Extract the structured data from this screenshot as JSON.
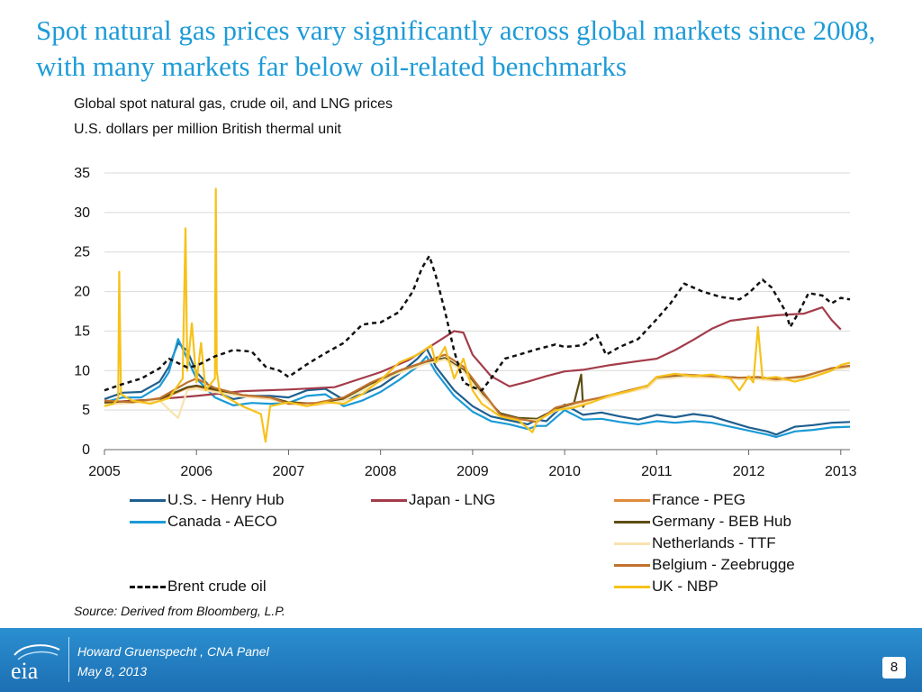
{
  "slide": {
    "title": "Spot natural gas prices vary significantly across global markets since 2008, with many markets far below oil-related benchmarks",
    "subtitle1": "Global spot natural gas, crude oil, and LNG prices",
    "subtitle2": "U.S. dollars per million British thermal unit",
    "source": "Source:  Derived from Bloomberg, L.P.",
    "footer_line1": "Howard Gruenspecht ,  CNA Panel",
    "footer_line2": "May 8, 2013",
    "logo_text": "eia",
    "page_number": "8"
  },
  "chart_data": {
    "type": "line",
    "title": "",
    "xlabel": "",
    "ylabel": "",
    "xlim": [
      2005,
      2013.1
    ],
    "ylim": [
      0,
      35
    ],
    "x_ticks": [
      "2005",
      "2006",
      "2007",
      "2008",
      "2009",
      "2010",
      "2011",
      "2012",
      "2013"
    ],
    "y_ticks": [
      "0",
      "5",
      "10",
      "15",
      "20",
      "25",
      "30",
      "35"
    ],
    "grid": "horizontal",
    "legend_position": "bottom",
    "series": [
      {
        "name": "U.S. - Henry Hub",
        "color": "#1f5f8f",
        "dash": "solid",
        "x": [
          2005.0,
          2005.2,
          2005.4,
          2005.6,
          2005.7,
          2005.8,
          2005.9,
          2006.0,
          2006.2,
          2006.4,
          2006.6,
          2006.8,
          2007.0,
          2007.2,
          2007.4,
          2007.6,
          2007.8,
          2008.0,
          2008.2,
          2008.4,
          2008.5,
          2008.6,
          2008.8,
          2009.0,
          2009.2,
          2009.4,
          2009.6,
          2009.7,
          2009.8,
          2009.9,
          2010.0,
          2010.2,
          2010.4,
          2010.6,
          2010.8,
          2011.0,
          2011.2,
          2011.4,
          2011.6,
          2011.8,
          2012.0,
          2012.2,
          2012.3,
          2012.5,
          2012.7,
          2012.9,
          2013.1
        ],
        "y": [
          6.4,
          7.2,
          7.3,
          8.6,
          10.5,
          13.5,
          12.5,
          9.8,
          7.3,
          6.4,
          6.8,
          6.8,
          6.6,
          7.5,
          7.7,
          6.3,
          7.0,
          8.0,
          9.6,
          11.5,
          12.8,
          10.5,
          7.5,
          5.5,
          4.2,
          3.7,
          3.2,
          3.8,
          3.6,
          4.7,
          5.7,
          4.4,
          4.7,
          4.2,
          3.8,
          4.4,
          4.1,
          4.5,
          4.2,
          3.5,
          2.8,
          2.3,
          1.9,
          2.9,
          3.1,
          3.4,
          3.5
        ]
      },
      {
        "name": "Canada - AECO",
        "color": "#1b9ad6",
        "dash": "solid",
        "x": [
          2005.0,
          2005.2,
          2005.4,
          2005.6,
          2005.7,
          2005.8,
          2005.9,
          2006.0,
          2006.2,
          2006.4,
          2006.6,
          2006.8,
          2007.0,
          2007.2,
          2007.4,
          2007.6,
          2007.8,
          2008.0,
          2008.2,
          2008.4,
          2008.5,
          2008.6,
          2008.8,
          2009.0,
          2009.2,
          2009.4,
          2009.6,
          2009.7,
          2009.8,
          2009.9,
          2010.0,
          2010.2,
          2010.4,
          2010.6,
          2010.8,
          2011.0,
          2011.2,
          2011.4,
          2011.6,
          2011.8,
          2012.0,
          2012.2,
          2012.3,
          2012.5,
          2012.7,
          2012.9,
          2013.1
        ],
        "y": [
          6.0,
          6.6,
          6.6,
          8.0,
          9.8,
          14.0,
          11.5,
          9.0,
          6.6,
          5.6,
          5.9,
          5.8,
          5.9,
          6.8,
          7.0,
          5.5,
          6.2,
          7.3,
          8.8,
          10.5,
          11.8,
          9.8,
          6.8,
          4.8,
          3.6,
          3.2,
          2.6,
          3.0,
          3.0,
          4.0,
          5.0,
          3.8,
          3.9,
          3.5,
          3.2,
          3.6,
          3.4,
          3.6,
          3.4,
          2.9,
          2.4,
          1.9,
          1.6,
          2.3,
          2.5,
          2.8,
          2.9
        ]
      },
      {
        "name": "Japan - LNG",
        "color": "#a33c4a",
        "dash": "solid",
        "x": [
          2005.0,
          2005.5,
          2006.0,
          2006.5,
          2007.0,
          2007.5,
          2008.0,
          2008.3,
          2008.6,
          2008.8,
          2008.9,
          2009.0,
          2009.2,
          2009.4,
          2009.6,
          2009.8,
          2010.0,
          2010.2,
          2010.5,
          2010.8,
          2011.0,
          2011.2,
          2011.4,
          2011.6,
          2011.8,
          2012.0,
          2012.3,
          2012.6,
          2012.8,
          2012.9,
          2013.0
        ],
        "y": [
          6.0,
          6.3,
          6.8,
          7.4,
          7.6,
          7.9,
          9.8,
          11.3,
          13.5,
          15.0,
          14.8,
          12.0,
          9.3,
          8.0,
          8.6,
          9.3,
          9.9,
          10.1,
          10.7,
          11.2,
          11.5,
          12.6,
          13.9,
          15.3,
          16.3,
          16.6,
          17.0,
          17.2,
          18.0,
          16.4,
          15.2
        ]
      },
      {
        "name": "France - PEG",
        "color": "#e08a3c",
        "dash": "solid",
        "x": [
          2005.0,
          2005.3,
          2005.6,
          2005.9,
          2006.0,
          2006.2,
          2006.5,
          2006.8,
          2007.0,
          2007.3,
          2007.6,
          2007.9,
          2008.2,
          2008.5,
          2008.7,
          2008.9,
          2009.1,
          2009.3,
          2009.5,
          2009.7,
          2009.9,
          2010.1,
          2010.4,
          2010.7,
          2010.9,
          2011.0,
          2011.3,
          2011.6,
          2011.9,
          2012.1,
          2012.3,
          2012.6,
          2012.9,
          2013.1
        ],
        "y": [
          5.8,
          6.0,
          6.3,
          7.8,
          8.0,
          7.5,
          6.8,
          6.5,
          5.9,
          5.7,
          6.3,
          8.2,
          9.8,
          11.0,
          11.5,
          10.0,
          7.0,
          4.5,
          3.9,
          3.8,
          5.0,
          5.7,
          6.5,
          7.4,
          7.9,
          9.0,
          9.3,
          9.2,
          9.0,
          9.0,
          8.8,
          9.1,
          10.2,
          10.5
        ]
      },
      {
        "name": "Germany - BEB Hub",
        "color": "#5c4d12",
        "dash": "solid",
        "x": [
          2005.0,
          2005.3,
          2005.6,
          2005.9,
          2006.0,
          2006.2,
          2006.5,
          2006.8,
          2007.0,
          2007.3,
          2007.6,
          2007.9,
          2008.2,
          2008.5,
          2008.7,
          2008.9,
          2009.1,
          2009.3,
          2009.5,
          2009.7,
          2009.9,
          2010.1,
          2010.18,
          2010.2,
          2010.22,
          2010.4,
          2010.7,
          2010.9,
          2011.0,
          2011.3,
          2011.6,
          2011.9,
          2012.1,
          2012.3,
          2012.6,
          2012.9,
          2013.1
        ],
        "y": [
          5.9,
          6.1,
          6.4,
          7.9,
          8.1,
          7.6,
          6.9,
          6.6,
          6.0,
          5.8,
          6.4,
          8.3,
          9.9,
          11.1,
          11.6,
          10.1,
          7.1,
          4.6,
          4.0,
          3.9,
          5.1,
          5.8,
          9.5,
          5.4,
          5.8,
          6.6,
          7.5,
          8.0,
          9.1,
          9.4,
          9.3,
          9.1,
          9.1,
          8.9,
          9.2,
          10.3,
          10.6
        ]
      },
      {
        "name": "Netherlands - TTF",
        "color": "#f8e3b0",
        "dash": "solid",
        "x": [
          2005.0,
          2005.3,
          2005.6,
          2005.8,
          2005.9,
          2006.0,
          2006.2,
          2006.5,
          2006.8,
          2007.0,
          2007.3,
          2007.6,
          2007.9,
          2008.2,
          2008.5,
          2008.7,
          2008.9,
          2009.1,
          2009.3,
          2009.5,
          2009.7,
          2009.9,
          2010.1,
          2010.4,
          2010.7,
          2010.9,
          2011.0,
          2011.3,
          2011.6,
          2011.9,
          2012.1,
          2012.3,
          2012.6,
          2012.9,
          2013.1
        ],
        "y": [
          5.7,
          5.9,
          6.2,
          4.0,
          7.5,
          7.7,
          7.3,
          6.7,
          6.4,
          5.8,
          5.6,
          6.2,
          8.1,
          9.7,
          10.9,
          11.4,
          9.9,
          6.9,
          4.4,
          3.8,
          3.7,
          4.9,
          5.6,
          6.4,
          7.3,
          7.8,
          8.9,
          9.2,
          9.1,
          8.9,
          8.9,
          8.7,
          9.0,
          10.1,
          10.4
        ]
      },
      {
        "name": "Belgium - Zeebrugge",
        "color": "#c0722e",
        "dash": "solid",
        "x": [
          2005.0,
          2005.3,
          2005.6,
          2005.9,
          2006.0,
          2006.2,
          2006.5,
          2006.8,
          2007.0,
          2007.3,
          2007.6,
          2007.9,
          2008.2,
          2008.5,
          2008.7,
          2008.9,
          2009.1,
          2009.3,
          2009.5,
          2009.7,
          2009.9,
          2010.1,
          2010.4,
          2010.7,
          2010.9,
          2011.0,
          2011.3,
          2011.6,
          2011.9,
          2012.1,
          2012.3,
          2012.6,
          2012.9,
          2013.1
        ],
        "y": [
          6.2,
          6.0,
          6.5,
          8.5,
          9.0,
          7.8,
          6.9,
          6.6,
          5.8,
          5.9,
          6.6,
          8.5,
          10.0,
          11.2,
          12.0,
          10.5,
          7.5,
          4.4,
          3.9,
          3.5,
          5.3,
          5.9,
          6.6,
          7.5,
          8.1,
          9.2,
          9.5,
          9.3,
          9.1,
          9.2,
          8.9,
          9.3,
          10.3,
          10.6
        ]
      },
      {
        "name": "UK - NBP",
        "color": "#f6c21b",
        "dash": "solid",
        "x": [
          2005.0,
          2005.1,
          2005.15,
          2005.16,
          2005.18,
          2005.3,
          2005.5,
          2005.7,
          2005.85,
          2005.88,
          2005.9,
          2005.95,
          2006.0,
          2006.05,
          2006.1,
          2006.2,
          2006.21,
          2006.22,
          2006.25,
          2006.3,
          2006.5,
          2006.7,
          2006.75,
          2006.8,
          2007.0,
          2007.2,
          2007.4,
          2007.6,
          2007.8,
          2008.0,
          2008.2,
          2008.4,
          2008.55,
          2008.6,
          2008.7,
          2008.8,
          2008.9,
          2009.0,
          2009.1,
          2009.3,
          2009.5,
          2009.65,
          2009.7,
          2009.9,
          2010.1,
          2010.3,
          2010.5,
          2010.7,
          2010.9,
          2011.0,
          2011.2,
          2011.4,
          2011.6,
          2011.8,
          2011.9,
          2012.0,
          2012.05,
          2012.1,
          2012.15,
          2012.3,
          2012.5,
          2012.7,
          2012.9,
          2013.0,
          2013.1
        ],
        "y": [
          5.5,
          5.8,
          6.5,
          22.5,
          7.0,
          6.2,
          5.8,
          6.5,
          9.0,
          28.0,
          10.0,
          16.0,
          8.5,
          13.5,
          7.5,
          9.0,
          33.0,
          10.0,
          7.5,
          6.8,
          5.5,
          4.5,
          1.0,
          5.5,
          6.0,
          5.5,
          6.0,
          5.8,
          7.0,
          8.8,
          11.0,
          12.0,
          13.2,
          11.0,
          13.0,
          9.0,
          11.5,
          7.5,
          5.8,
          4.2,
          3.7,
          2.2,
          3.6,
          5.0,
          5.3,
          6.0,
          6.9,
          7.4,
          8.1,
          9.2,
          9.6,
          9.3,
          9.5,
          9.0,
          7.5,
          9.3,
          8.5,
          15.5,
          9.0,
          9.2,
          8.6,
          9.2,
          10.0,
          10.7,
          11.0
        ]
      },
      {
        "name": "Brent crude oil",
        "color": "#111111",
        "dash": "dashed",
        "x": [
          2005.0,
          2005.2,
          2005.4,
          2005.6,
          2005.7,
          2005.9,
          2006.0,
          2006.2,
          2006.4,
          2006.6,
          2006.75,
          2006.9,
          2007.0,
          2007.2,
          2007.4,
          2007.6,
          2007.8,
          2007.9,
          2008.0,
          2008.2,
          2008.35,
          2008.45,
          2008.53,
          2008.6,
          2008.7,
          2008.8,
          2008.9,
          2009.0,
          2009.1,
          2009.2,
          2009.35,
          2009.5,
          2009.7,
          2009.9,
          2010.0,
          2010.2,
          2010.35,
          2010.45,
          2010.6,
          2010.8,
          2011.0,
          2011.15,
          2011.3,
          2011.5,
          2011.7,
          2011.9,
          2012.0,
          2012.15,
          2012.25,
          2012.4,
          2012.45,
          2012.55,
          2012.65,
          2012.8,
          2012.9,
          2013.0,
          2013.1
        ],
        "y": [
          7.5,
          8.3,
          9.0,
          10.3,
          11.5,
          10.4,
          10.6,
          11.8,
          12.6,
          12.4,
          10.5,
          10.0,
          9.2,
          10.8,
          12.2,
          13.5,
          15.8,
          16.0,
          16.1,
          17.4,
          20.0,
          23.0,
          24.5,
          22.0,
          17.5,
          12.5,
          8.5,
          7.9,
          7.5,
          9.0,
          11.5,
          12.0,
          12.7,
          13.3,
          13.0,
          13.2,
          14.5,
          12.0,
          13.0,
          14.0,
          16.5,
          18.5,
          21.0,
          20.0,
          19.3,
          19.0,
          19.8,
          21.5,
          20.5,
          17.5,
          15.5,
          17.5,
          19.8,
          19.5,
          18.5,
          19.2,
          19.0
        ]
      }
    ]
  }
}
